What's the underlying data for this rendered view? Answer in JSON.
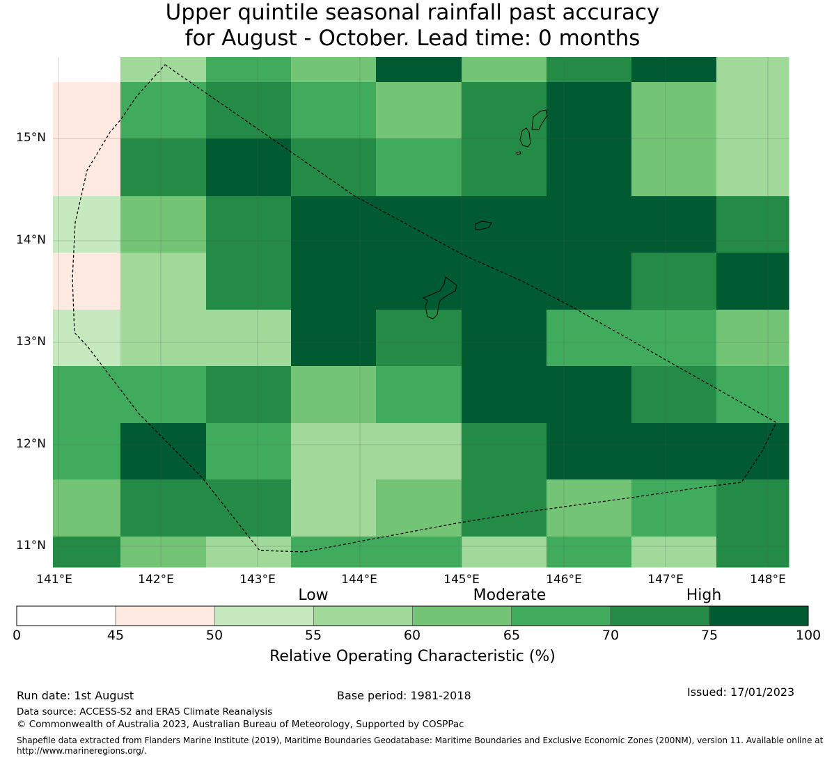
{
  "title": {
    "line1": "Upper quintile seasonal rainfall past accuracy",
    "line2": "for August - October. Lead time: 0 months"
  },
  "map": {
    "lat_labels": [
      "15°N",
      "14°N",
      "13°N",
      "12°N",
      "11°N"
    ],
    "lon_labels": [
      "141°E",
      "142°E",
      "143°E",
      "144°E",
      "145°E",
      "146°E",
      "147°E",
      "148°E"
    ],
    "grid_values": [
      [
        0,
        57.5,
        67.5,
        62.5,
        80,
        62.5,
        72.5,
        80,
        57.5
      ],
      [
        47.5,
        67.5,
        72.5,
        67.5,
        62.5,
        72.5,
        80,
        62.5,
        57.5
      ],
      [
        47.5,
        72.5,
        80,
        72.5,
        67.5,
        72.5,
        80,
        62.5,
        57.5
      ],
      [
        52.5,
        62.5,
        72.5,
        80,
        80,
        80,
        80,
        80,
        72.5
      ],
      [
        47.5,
        57.5,
        72.5,
        80,
        80,
        80,
        80,
        72.5,
        80
      ],
      [
        52.5,
        57.5,
        57.5,
        80,
        72.5,
        80,
        67.5,
        67.5,
        62.5
      ],
      [
        67.5,
        67.5,
        72.5,
        62.5,
        67.5,
        80,
        80,
        72.5,
        67.5
      ],
      [
        67.5,
        80,
        67.5,
        57.5,
        57.5,
        72.5,
        80,
        80,
        80
      ],
      [
        62.5,
        72.5,
        72.5,
        57.5,
        62.5,
        72.5,
        62.5,
        67.5,
        72.5
      ],
      [
        72.5,
        62.5,
        57.5,
        67.5,
        67.5,
        57.5,
        67.5,
        57.5,
        72.5
      ]
    ]
  },
  "colorbar": {
    "category_labels": [
      "Low",
      "Moderate",
      "High"
    ],
    "ticks": [
      "0",
      "45",
      "50",
      "55",
      "60",
      "65",
      "70",
      "75",
      "100"
    ],
    "colors": [
      "#ffffff",
      "#feeae1",
      "#c7e9c0",
      "#a1d99b",
      "#74c476",
      "#41ab5d",
      "#238b45",
      "#005a32"
    ],
    "title": "Relative Operating Characteristic (%)"
  },
  "footer": {
    "run_date": "Run date: 1st August",
    "base_period": "Base period: 1981-2018",
    "issued": "Issued: 17/01/2023",
    "data_source": "Data source: ACCESS-S2 and ERA5 Climate Reanalysis",
    "copyright": "© Commonwealth of Australia 2023, Australian Bureau of Meteorology, Supported by COSPPac",
    "shapefile_note": "Shapefile data extracted from Flanders Marine Institute (2019), Maritime Boundaries Geodatabase: Maritime Boundaries and Exclusive Economic Zones (200NM), version 11. Available online at http://www.marineregions.org/."
  }
}
